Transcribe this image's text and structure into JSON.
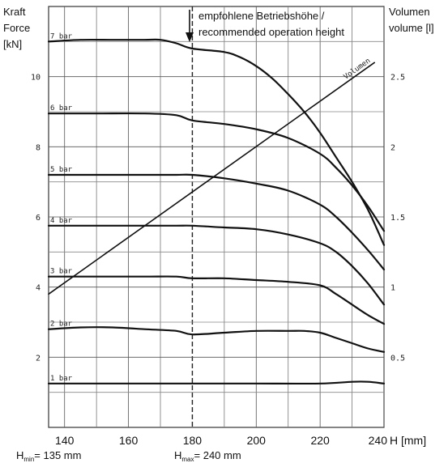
{
  "chart_data": {
    "type": "line",
    "y_left_label": [
      "Kraft",
      "Force",
      "[kN]"
    ],
    "y_right_label": [
      "Volumen",
      "volume [l]"
    ],
    "x_label": "H [mm]",
    "xlim": [
      135,
      240
    ],
    "ylim_left": [
      0,
      12
    ],
    "ylim_right": [
      0,
      3
    ],
    "x_ticks": [
      140,
      160,
      180,
      200,
      220,
      240
    ],
    "x_tick_labels": [
      "140",
      "160",
      "180",
      "200",
      "220",
      "240"
    ],
    "y_left_ticks": [
      2,
      4,
      6,
      8,
      10
    ],
    "y_left_tick_labels": [
      "2",
      "4",
      "6",
      "8",
      "10"
    ],
    "y_right_ticks": [
      0.5,
      1,
      1.5,
      2,
      2.5
    ],
    "y_right_tick_labels": [
      "0.5",
      "1",
      "1.5",
      "2",
      "2.5"
    ],
    "grid": true,
    "annotation": {
      "x": 180,
      "lines": [
        "empfohlene Betriebshöhe /",
        "recommended operation height"
      ]
    },
    "footnotes": {
      "hmin_main": "H",
      "hmin_sub": "min",
      "hmin_value": "= 135 mm",
      "hmax_main": "H",
      "hmax_sub": "max",
      "hmax_value": "= 240 mm"
    },
    "series": [
      {
        "name": "7 bar",
        "axis": "left",
        "x": [
          135,
          145,
          155,
          165,
          170,
          175,
          180,
          190,
          195,
          200,
          205,
          210,
          215,
          220,
          225,
          230,
          235,
          240
        ],
        "y": [
          11.0,
          11.05,
          11.05,
          11.05,
          11.05,
          10.95,
          10.8,
          10.7,
          10.55,
          10.3,
          9.95,
          9.5,
          9.0,
          8.4,
          7.7,
          7.0,
          6.2,
          5.2
        ]
      },
      {
        "name": "6 bar",
        "axis": "left",
        "x": [
          135,
          150,
          165,
          175,
          180,
          190,
          200,
          210,
          220,
          225,
          230,
          235,
          240
        ],
        "y": [
          8.95,
          8.95,
          8.95,
          8.9,
          8.75,
          8.65,
          8.5,
          8.25,
          7.8,
          7.4,
          6.9,
          6.3,
          5.6
        ]
      },
      {
        "name": "5 bar",
        "axis": "left",
        "x": [
          135,
          150,
          165,
          175,
          180,
          190,
          200,
          210,
          220,
          225,
          230,
          235,
          240
        ],
        "y": [
          7.2,
          7.2,
          7.2,
          7.2,
          7.2,
          7.1,
          6.95,
          6.75,
          6.35,
          6.0,
          5.55,
          5.05,
          4.5
        ]
      },
      {
        "name": "4 bar",
        "axis": "left",
        "x": [
          135,
          150,
          165,
          175,
          180,
          190,
          200,
          210,
          220,
          225,
          230,
          235,
          240
        ],
        "y": [
          5.75,
          5.75,
          5.75,
          5.75,
          5.75,
          5.7,
          5.65,
          5.5,
          5.25,
          5.0,
          4.6,
          4.1,
          3.5
        ]
      },
      {
        "name": "3 bar",
        "axis": "left",
        "x": [
          135,
          150,
          165,
          175,
          180,
          190,
          200,
          210,
          220,
          225,
          230,
          235,
          240
        ],
        "y": [
          4.3,
          4.3,
          4.3,
          4.3,
          4.25,
          4.25,
          4.2,
          4.15,
          4.05,
          3.8,
          3.5,
          3.2,
          2.95
        ]
      },
      {
        "name": "2 bar",
        "axis": "left",
        "x": [
          135,
          145,
          155,
          165,
          175,
          180,
          190,
          200,
          210,
          215,
          220,
          225,
          230,
          235,
          240
        ],
        "y": [
          2.8,
          2.85,
          2.85,
          2.8,
          2.75,
          2.65,
          2.7,
          2.75,
          2.75,
          2.75,
          2.7,
          2.55,
          2.4,
          2.25,
          2.15
        ]
      },
      {
        "name": "1 bar",
        "axis": "left",
        "x": [
          135,
          160,
          180,
          200,
          220,
          230,
          235,
          240
        ],
        "y": [
          1.25,
          1.25,
          1.25,
          1.25,
          1.25,
          1.3,
          1.3,
          1.25
        ]
      },
      {
        "name": "Volumen",
        "axis": "right",
        "x": [
          135,
          237
        ],
        "y": [
          0.95,
          2.6
        ]
      }
    ]
  }
}
